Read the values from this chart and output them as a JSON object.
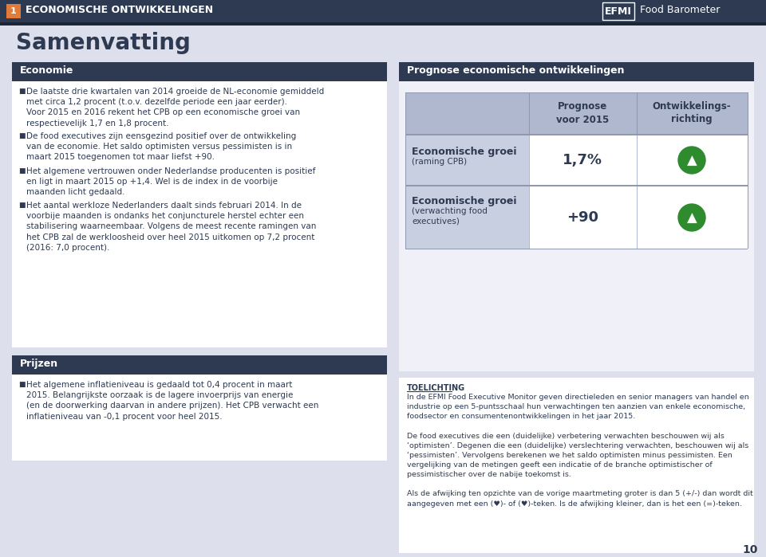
{
  "bg_color": "#dde0ec",
  "header_bg": "#2d3a52",
  "header_text_color": "#ffffff",
  "header_label_num": "1",
  "header_label_num_bg": "#e07b39",
  "header_title": "ECONOMISCHE ONTWIKKELINGEN",
  "efmi_bg": "#2d3a52",
  "efmi_text": "EFMI",
  "barometer_text": "Food Barometer",
  "samenvatting_title": "Samenvatting",
  "samenvatting_color": "#2d3a52",
  "left_box1_header_bg": "#2d3a52",
  "left_box1_header_text": "Economie",
  "left_box1_body": [
    "De laatste drie kwartalen van 2014 groeide de NL-economie gemiddeld met circa 1,2 procent (t.o.v. dezelfde periode een jaar eerder). Voor 2015 en 2016 rekent het CPB op een economische groei van respectievelijk 1,7 en 1,8 procent.",
    "De food executives zijn eensgezind positief over de ontwikkeling van de economie. Het saldo optimisten versus pessimisten is in maart 2015 toegenomen tot maar liefst +90.",
    "Het algemene vertrouwen onder Nederlandse producenten is positief en ligt in maart 2015 op +1,4. Wel is de index in de voorbije maanden licht gedaald.",
    "Het aantal werkloze Nederlanders daalt sinds februari 2014. In de voorbije maanden is ondanks het conjuncturele herstel echter een stabilisering waarneembaar. Volgens de meest recente ramingen van het CPB zal de werkloosheid over heel 2015 uitkomen op 7,2 procent (2016: 7,0 procent)."
  ],
  "left_box2_header_bg": "#2d3a52",
  "left_box2_header_text": "Prijzen",
  "left_box2_body": [
    "Het algemene inflatieniveau is gedaald tot 0,4 procent in maart 2015. Belangrijkste oorzaak is de lagere invoerprijs van energie (en de doorwerking daarvan in andere prijzen). Het CPB verwacht een inflatieniveau van -0,1 procent voor heel 2015."
  ],
  "right_panel_header_bg": "#2d3a52",
  "right_panel_header_text": "Prognose economische ontwikkelingen",
  "table_header_bg": "#b0b8d0",
  "table_header_col1": "Prognose\nvoor 2015",
  "table_header_col2": "Ontwikkelings-\nrichting",
  "table_row1_label": "Economische groei",
  "table_row1_sublabel": "(raming CPB)",
  "table_row1_value": "1,7%",
  "table_row2_label": "Economische groei",
  "table_row2_sublabel": "(verwachting food\nexecutives)",
  "table_row2_value": "+90",
  "table_arrow_color": "#2e8b2e",
  "table_row_bg_odd": "#c8cfe0",
  "toelichting_title": "TOELICHTING",
  "toelichting_line1": "In de EFMI Food Executive Monitor geven directieleden en senior managers van handel en",
  "toelichting_line2": "industrie op een 5-puntsschaal hun verwachtingen ten aanzien van enkele economische,",
  "toelichting_line3": "foodsector en consumentenontwikkelingen in het jaar 2015.",
  "toelichting_line4": "De food executives die een (duidelijke) verbetering verwachten beschouwen wij als",
  "toelichting_line5": "‘optimisten’. Degenen die een (duidelijke) verslechtering verwachten, beschouwen wij als",
  "toelichting_line6": "‘pessimisten’. Vervolgens berekenen we het saldo optimisten minus pessimisten. Een",
  "toelichting_line7": "vergelijking van de metingen geeft een indicatie of de branche optimistischer of",
  "toelichting_line8": "pessimistischer over de nabije toekomst is.",
  "toelichting_line9": "Als de afwijking ten opzichte van de vorige maartmeting groter is dan 5 (+/-) dan wordt dit",
  "toelichting_line10": "aangegeven met een (♥)- of (♥)-teken. Is de afwijking kleiner, dan is het een (=)-teken.",
  "page_number": "10"
}
